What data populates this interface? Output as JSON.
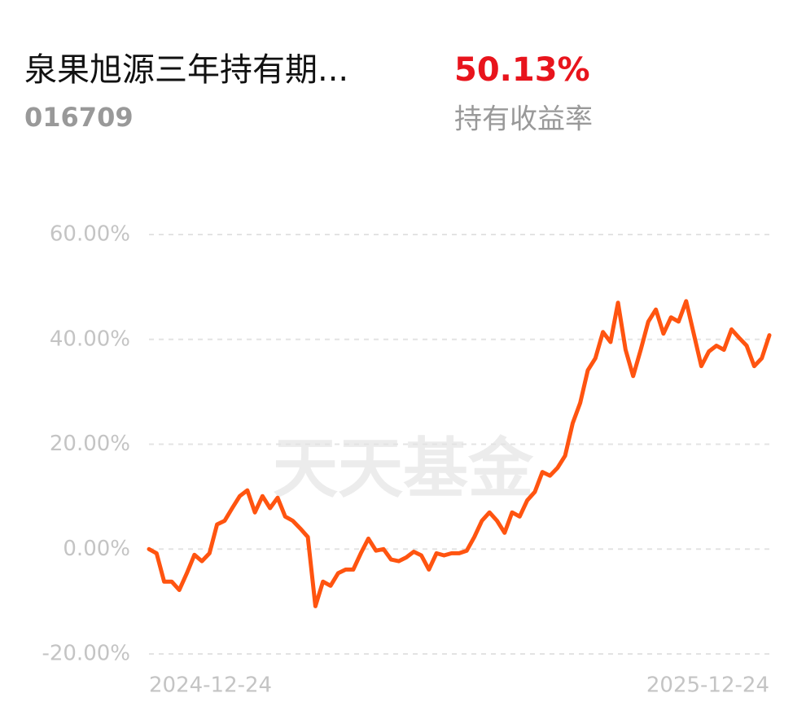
{
  "header": {
    "fund_name": "泉果旭源三年持有期...",
    "fund_code": "016709",
    "return_value": "50.13%",
    "return_label": "持有收益率"
  },
  "watermark": "天天基金",
  "chart_data": {
    "type": "line",
    "categories": [
      "2024-12-24",
      null,
      null,
      null,
      null,
      null,
      null,
      null,
      null,
      null,
      null,
      null,
      null,
      null,
      null,
      null,
      null,
      null,
      null,
      null,
      null,
      null,
      null,
      null,
      null,
      null,
      null,
      null,
      null,
      null,
      null,
      null,
      null,
      null,
      null,
      null,
      null,
      null,
      null,
      null,
      null,
      null,
      null,
      null,
      null,
      null,
      null,
      null,
      null,
      null,
      null,
      null,
      null,
      null,
      null,
      null,
      null,
      null,
      null,
      null,
      null,
      null,
      null,
      null,
      null,
      null,
      null,
      null,
      null,
      null,
      null,
      null,
      null,
      null,
      null,
      null,
      null,
      null,
      null,
      null,
      null,
      null,
      "2025-12-24"
    ],
    "series": [
      {
        "color": "#ff5410",
        "values": [
          0,
          -0.8,
          -6.2,
          -6.2,
          -7.8,
          -4.6,
          -1.1,
          -2.3,
          -0.8,
          4.7,
          5.4,
          7.8,
          10.1,
          11.2,
          7,
          10.1,
          7.8,
          9.8,
          6.2,
          5.4,
          3.9,
          2.3,
          -10.9,
          -6.2,
          -7,
          -4.6,
          -3.9,
          -3.9,
          -0.8,
          2,
          -0.3,
          0,
          -2,
          -2.3,
          -1.6,
          -0.5,
          -1.2,
          -3.9,
          -0.8,
          -1.2,
          -0.8,
          -0.8,
          -0.3,
          2.3,
          5.4,
          7,
          5.4,
          3.1,
          7,
          6.2,
          9.3,
          10.9,
          14.7,
          14,
          15.5,
          17.8,
          24,
          27.9,
          34.1,
          36.4,
          41.4,
          39.5,
          47,
          38,
          33,
          38,
          43.4,
          45.7,
          41.1,
          44.2,
          43.4,
          47.3,
          41.1,
          34.9,
          37.7,
          38.8,
          38,
          41.9,
          40.3,
          38.8,
          34.9,
          36.4,
          40.8
        ]
      }
    ],
    "ylim": [
      -20,
      60
    ],
    "yticks": [
      {
        "value": 60,
        "label": "60.00%"
      },
      {
        "value": 40,
        "label": "40.00%"
      },
      {
        "value": 20,
        "label": "20.00%"
      },
      {
        "value": 0,
        "label": "0.00%"
      },
      {
        "value": -20,
        "label": "-20.00%"
      }
    ],
    "grid": true
  }
}
